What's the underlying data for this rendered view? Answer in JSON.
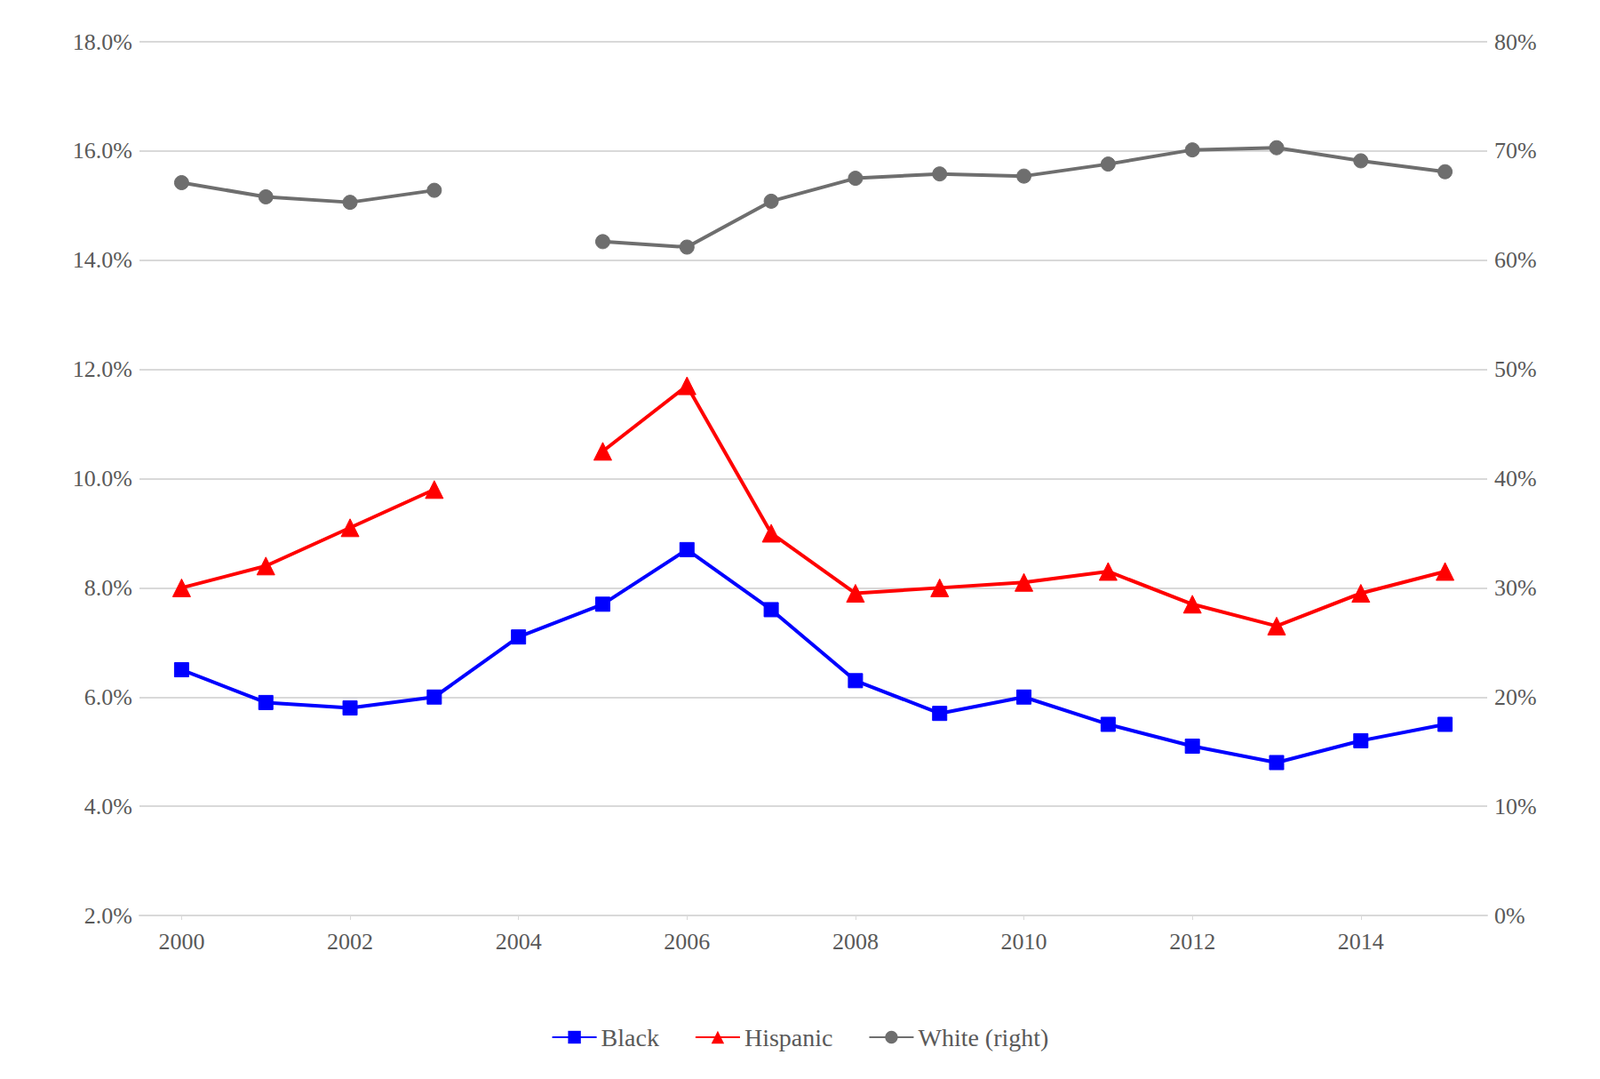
{
  "chart_data": {
    "type": "line",
    "x": [
      2000,
      2001,
      2002,
      2003,
      2004,
      2005,
      2006,
      2007,
      2008,
      2009,
      2010,
      2011,
      2012,
      2013,
      2014,
      2015
    ],
    "xlim": [
      1999.5,
      2015.5
    ],
    "xticks": [
      2000,
      2002,
      2004,
      2006,
      2008,
      2010,
      2012,
      2014
    ],
    "ylim": [
      2.0,
      18.0
    ],
    "yticks": [
      {
        "value": 2,
        "label": "2.0%"
      },
      {
        "value": 4,
        "label": "4.0%"
      },
      {
        "value": 6,
        "label": "6.0%"
      },
      {
        "value": 8,
        "label": "8.0%"
      },
      {
        "value": 10,
        "label": "10.0%"
      },
      {
        "value": 12,
        "label": "12.0%"
      },
      {
        "value": 14,
        "label": "14.0%"
      },
      {
        "value": 16,
        "label": "16.0%"
      },
      {
        "value": 18,
        "label": "18.0%"
      }
    ],
    "y2lim": [
      0,
      80
    ],
    "y2ticks": [
      {
        "value": 0,
        "label": "0%"
      },
      {
        "value": 10,
        "label": "10%"
      },
      {
        "value": 20,
        "label": "20%"
      },
      {
        "value": 30,
        "label": "30%"
      },
      {
        "value": 40,
        "label": "40%"
      },
      {
        "value": 50,
        "label": "50%"
      },
      {
        "value": 60,
        "label": "60%"
      },
      {
        "value": 70,
        "label": "70%"
      },
      {
        "value": 80,
        "label": "80%"
      }
    ],
    "grid": true,
    "legend": "bottom",
    "series": [
      {
        "name": "Black",
        "color": "#0000ff",
        "marker": "square",
        "values": [
          6.5,
          5.9,
          5.8,
          6.0,
          7.1,
          7.7,
          8.7,
          7.6,
          6.3,
          5.7,
          6.0,
          5.5,
          5.1,
          4.8,
          5.2,
          5.5
        ]
      },
      {
        "name": "Hispanic",
        "color": "#ff0000",
        "marker": "triangle",
        "values": [
          8.0,
          8.4,
          9.1,
          9.8,
          null,
          10.5,
          11.7,
          9.0,
          7.9,
          8.0,
          8.1,
          8.3,
          7.7,
          7.3,
          7.9,
          8.3
        ]
      },
      {
        "name": "White (right)",
        "color": "#6e6e6e",
        "marker": "circle",
        "axis": "y2",
        "values": [
          67.1,
          65.8,
          65.3,
          66.4,
          null,
          61.7,
          61.2,
          65.4,
          67.5,
          67.9,
          67.7,
          68.8,
          70.1,
          70.3,
          69.1,
          68.1
        ]
      }
    ]
  }
}
